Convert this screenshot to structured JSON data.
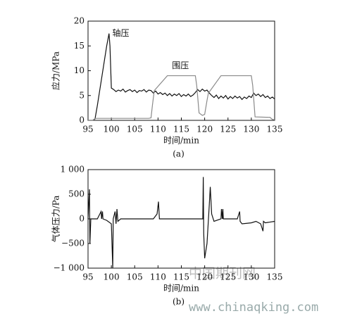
{
  "chart_data": [
    {
      "type": "line",
      "caption": "(a)",
      "x_label": "时间/min",
      "y_label": "应力/MPa",
      "xlim": [
        95,
        135
      ],
      "xticks": [
        95,
        100,
        105,
        110,
        115,
        120,
        125,
        130,
        135
      ],
      "ylim": [
        0,
        20
      ],
      "yticks": [
        0,
        5,
        10,
        15,
        20
      ],
      "series": [
        {
          "name": "轴压",
          "color": "#111111",
          "x": [
            95,
            96,
            96.5,
            97,
            97.5,
            98,
            98.5,
            99,
            99.3,
            99.5,
            99.7,
            100,
            100.5,
            101,
            101.5,
            102,
            102.5,
            103,
            103.5,
            104,
            104.5,
            105,
            105.5,
            106,
            106.5,
            107,
            107.5,
            108,
            108.5,
            109,
            109.5,
            110,
            110.5,
            111,
            111.5,
            112,
            112.5,
            113,
            113.5,
            114,
            114.5,
            115,
            115.5,
            116,
            116.5,
            117,
            117.5,
            118,
            118.5,
            119,
            119.5,
            120,
            120.5,
            121,
            121.5,
            122,
            122.5,
            123,
            123.5,
            124,
            124.5,
            125,
            125.5,
            126,
            126.5,
            127,
            127.5,
            128,
            128.5,
            129,
            129.5,
            130,
            130.5,
            131,
            131.5,
            132,
            132.5,
            133,
            133.5,
            134,
            134.5,
            135
          ],
          "values": [
            0,
            0,
            0.3,
            3,
            6,
            9,
            12,
            15,
            16.5,
            17.5,
            15,
            6.5,
            6.2,
            5.8,
            6.1,
            5.9,
            6.3,
            5.7,
            6.0,
            6.2,
            5.8,
            6.1,
            5.6,
            6.0,
            5.9,
            6.2,
            5.7,
            6.1,
            6.0,
            5.5,
            5.9,
            5.3,
            5.6,
            5.2,
            5.5,
            5.0,
            5.4,
            4.9,
            5.3,
            5.0,
            5.4,
            4.8,
            5.2,
            4.9,
            5.3,
            4.8,
            5.1,
            5.6,
            6.2,
            5.8,
            6.3,
            5.9,
            6.1,
            5.5,
            5.0,
            4.6,
            5.1,
            4.4,
            4.9,
            4.5,
            5.0,
            4.3,
            4.8,
            4.4,
            4.9,
            4.5,
            4.8,
            4.2,
            4.7,
            4.4,
            4.9,
            4.6,
            5.5,
            5.0,
            5.3,
            4.8,
            5.2,
            4.6,
            4.9,
            4.4,
            4.7,
            4.3
          ]
        },
        {
          "name": "围压",
          "color": "#8a8a8a",
          "x": [
            95,
            96,
            96.5,
            108,
            108.5,
            108.8,
            109.2,
            112,
            118,
            118.3,
            118.8,
            119.5,
            120,
            120.5,
            120.8,
            121.2,
            123.5,
            130,
            130.3,
            130.8,
            134,
            134.5,
            135
          ],
          "values": [
            0,
            0,
            0.4,
            0.4,
            0.5,
            3,
            6,
            9,
            9,
            7,
            1.5,
            1,
            1.2,
            4,
            5.5,
            6,
            9,
            9,
            7,
            0.7,
            0.6,
            0.2,
            0.1
          ]
        }
      ]
    },
    {
      "type": "line",
      "caption": "(b)",
      "x_label": "时间/min",
      "y_label": "气体压力/Pa",
      "xlim": [
        95,
        135
      ],
      "xticks": [
        95,
        100,
        105,
        110,
        115,
        120,
        125,
        130,
        135
      ],
      "ylim": [
        -1000,
        1000
      ],
      "yticks": [
        {
          "value": 1000,
          "label": "1 000"
        },
        500,
        0,
        {
          "value": -500,
          "label": "−500"
        },
        {
          "value": -1000,
          "label": "−1 000"
        }
      ],
      "series": [
        {
          "color": "#111111",
          "x": [
            95,
            95.3,
            95.4,
            95.6,
            97,
            97.8,
            97.9,
            98.1,
            98.2,
            99,
            100,
            100.3,
            100.4,
            100.8,
            101,
            101.2,
            101.4,
            102,
            109,
            109.8,
            110.1,
            110.3,
            118,
            119.6,
            119.7,
            119.8,
            120,
            120.5,
            121,
            121.2,
            121.5,
            122,
            123.5,
            123.6,
            123.8,
            123.9,
            124,
            127,
            127.5,
            127.6,
            128,
            130,
            131,
            132,
            132.5,
            132.6,
            133,
            135
          ],
          "values": [
            0,
            600,
            -500,
            0,
            0,
            150,
            0,
            150,
            0,
            -30,
            -100,
            -1000,
            0,
            150,
            -100,
            200,
            -50,
            0,
            0,
            100,
            350,
            0,
            0,
            0,
            850,
            -300,
            -800,
            -500,
            300,
            650,
            100,
            -50,
            0,
            200,
            0,
            200,
            0,
            0,
            150,
            -50,
            -100,
            -80,
            -50,
            -100,
            -250,
            -50,
            -80,
            -50
          ]
        }
      ]
    }
  ],
  "watermark": {
    "site": "中国期刊网",
    "url": "www.chinaqking.com"
  }
}
